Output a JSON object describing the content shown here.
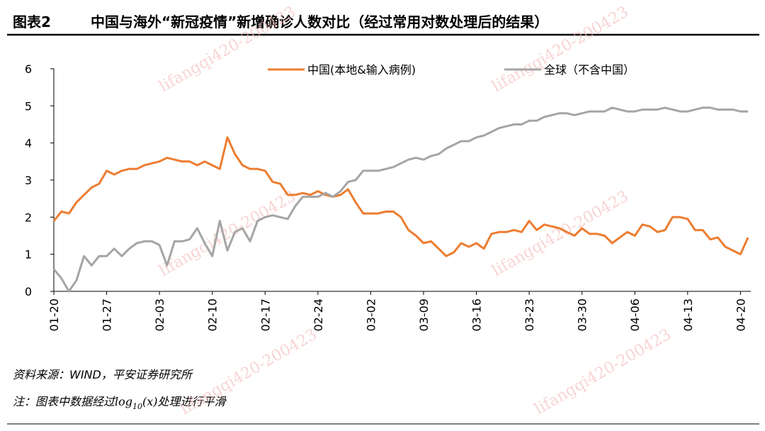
{
  "chart_data": {
    "type": "line",
    "header_label": "图表2",
    "title": "中国与海外“新冠疫情”新增确诊人数对比（经过常用对数处理后的结果）",
    "categories": [
      "01-20",
      null,
      null,
      null,
      null,
      null,
      null,
      "01-27",
      null,
      null,
      null,
      null,
      null,
      null,
      "02-03",
      null,
      null,
      null,
      null,
      null,
      null,
      "02-10",
      null,
      null,
      null,
      null,
      null,
      null,
      "02-17",
      null,
      null,
      null,
      null,
      null,
      null,
      "02-24",
      null,
      null,
      null,
      null,
      null,
      null,
      "03-02",
      null,
      null,
      null,
      null,
      null,
      null,
      "03-09",
      null,
      null,
      null,
      null,
      null,
      null,
      "03-16",
      null,
      null,
      null,
      null,
      null,
      null,
      "03-23",
      null,
      null,
      null,
      null,
      null,
      null,
      "03-30",
      null,
      null,
      null,
      null,
      null,
      null,
      "04-06",
      null,
      null,
      null,
      null,
      null,
      null,
      "04-13",
      null,
      null,
      null,
      null,
      null,
      null,
      "04-20",
      null
    ],
    "series": [
      {
        "name": "中国(本地&输入病例)",
        "color": "#ed7d31",
        "values": [
          1.9,
          2.15,
          2.1,
          2.4,
          2.6,
          2.8,
          2.9,
          3.25,
          3.15,
          3.25,
          3.3,
          3.3,
          3.4,
          3.45,
          3.5,
          3.6,
          3.55,
          3.5,
          3.5,
          3.4,
          3.5,
          3.4,
          3.3,
          4.15,
          3.7,
          3.4,
          3.3,
          3.3,
          3.25,
          2.95,
          2.9,
          2.6,
          2.6,
          2.65,
          2.6,
          2.7,
          2.6,
          2.55,
          2.6,
          2.75,
          2.4,
          2.1,
          2.1,
          2.1,
          2.15,
          2.15,
          2.0,
          1.65,
          1.5,
          1.3,
          1.35,
          1.15,
          0.95,
          1.05,
          1.3,
          1.2,
          1.3,
          1.15,
          1.55,
          1.6,
          1.6,
          1.65,
          1.6,
          1.9,
          1.65,
          1.8,
          1.75,
          1.7,
          1.6,
          1.5,
          1.7,
          1.55,
          1.55,
          1.5,
          1.3,
          1.45,
          1.6,
          1.5,
          1.8,
          1.75,
          1.6,
          1.65,
          2.0,
          2.0,
          1.95,
          1.65,
          1.65,
          1.4,
          1.45,
          1.2,
          1.1,
          1.0,
          1.45
        ]
      },
      {
        "name": "全球（不含中国）",
        "color": "#a5a5a5",
        "values": [
          0.6,
          0.35,
          0.0,
          0.3,
          0.95,
          0.7,
          0.95,
          0.95,
          1.15,
          0.95,
          1.15,
          1.3,
          1.35,
          1.35,
          1.25,
          0.7,
          1.35,
          1.35,
          1.4,
          1.7,
          1.3,
          0.95,
          1.9,
          1.1,
          1.6,
          1.7,
          1.35,
          1.9,
          2.0,
          2.05,
          2.0,
          1.95,
          2.3,
          2.55,
          2.55,
          2.55,
          2.65,
          2.55,
          2.7,
          2.95,
          3.0,
          3.25,
          3.25,
          3.25,
          3.3,
          3.35,
          3.45,
          3.55,
          3.6,
          3.55,
          3.65,
          3.7,
          3.85,
          3.95,
          4.05,
          4.05,
          4.15,
          4.2,
          4.3,
          4.4,
          4.45,
          4.5,
          4.5,
          4.6,
          4.6,
          4.7,
          4.75,
          4.8,
          4.8,
          4.75,
          4.8,
          4.85,
          4.85,
          4.85,
          4.95,
          4.9,
          4.85,
          4.85,
          4.9,
          4.9,
          4.9,
          4.95,
          4.9,
          4.85,
          4.85,
          4.9,
          4.95,
          4.95,
          4.9,
          4.9,
          4.9,
          4.85,
          4.85
        ]
      }
    ],
    "ylim": [
      0,
      6
    ],
    "yticks": [
      0,
      1,
      2,
      3,
      4,
      5,
      6
    ],
    "legend": "top",
    "source": "资料来源：WIND，平安证券研究所",
    "note": {
      "prefix": "注：图表中数据经过",
      "func": "log",
      "sub": "10",
      "arg": "(x)",
      "suffix": "处理进行平滑"
    },
    "watermark": "lifangqi420-200423"
  }
}
